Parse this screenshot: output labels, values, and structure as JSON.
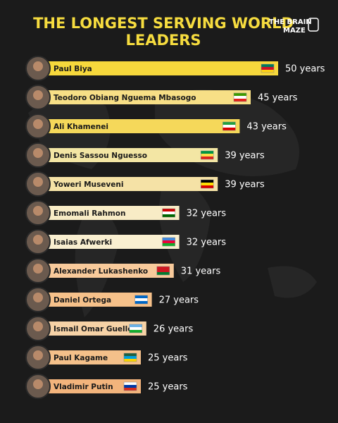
{
  "brand": "THE BRAIN MAZE",
  "chart_data": {
    "type": "bar",
    "orientation": "horizontal",
    "title": "THE LONGEST SERVING WORLD LEADERS",
    "categories": [
      "Paul Biya",
      "Teodoro Obiang Nguema Mbasogo",
      "Ali Khamenei",
      "Denis Sassou Nguesso",
      "Yoweri Museveni",
      "Emomali Rahmon",
      "Isaias Afwerki",
      "Alexander Lukashenko",
      "Daniel Ortega",
      "Ismail Omar Guelleh",
      "Paul Kagame",
      "Vladimir Putin"
    ],
    "values": [
      50,
      45,
      43,
      39,
      39,
      32,
      32,
      31,
      27,
      26,
      25,
      25
    ],
    "value_labels": [
      "50 years",
      "45 years",
      "43 years",
      "39 years",
      "39 years",
      "32 years",
      "32 years",
      "31 years",
      "27 years",
      "26 years",
      "25 years",
      "25 years"
    ],
    "colors": [
      "#f6d83c",
      "#f7df86",
      "#f5d85a",
      "#f3e6a4",
      "#f5e2a6",
      "#f8ecc6",
      "#f9efd0",
      "#f8ca9b",
      "#f6c18a",
      "#f6d2a6",
      "#f4c08a",
      "#f3b47c"
    ]
  }
}
